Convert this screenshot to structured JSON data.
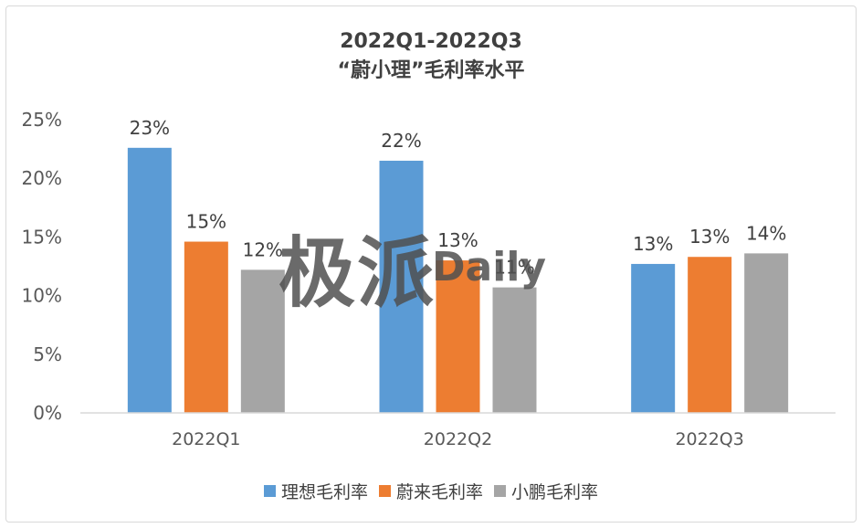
{
  "chart_data": {
    "type": "bar",
    "title_line1": "2022Q1-2022Q3",
    "title_line2": "“蔚小理”毛利率水平",
    "categories": [
      "2022Q1",
      "2022Q2",
      "2022Q3"
    ],
    "series": [
      {
        "name": "理想毛利率",
        "values": [
          22.6,
          21.5,
          12.7
        ],
        "labels": [
          "23%",
          "22%",
          "13%"
        ],
        "color": "#5b9bd5"
      },
      {
        "name": "蔚来毛利率",
        "values": [
          14.6,
          13.0,
          13.3
        ],
        "labels": [
          "15%",
          "13%",
          "13%"
        ],
        "color": "#ed7d31"
      },
      {
        "name": "小鹏毛利率",
        "values": [
          12.2,
          10.7,
          13.6
        ],
        "labels": [
          "12%",
          "11%",
          "14%"
        ],
        "color": "#a5a5a5"
      }
    ],
    "yticks": [
      0,
      5,
      10,
      15,
      20,
      25
    ],
    "ytick_labels": [
      "0%",
      "5%",
      "10%",
      "15%",
      "20%",
      "25%"
    ],
    "ylim": [
      0,
      25
    ],
    "grid": false,
    "legend_position": "bottom"
  },
  "watermark": {
    "chinese": "极派",
    "latin": "Daily"
  }
}
